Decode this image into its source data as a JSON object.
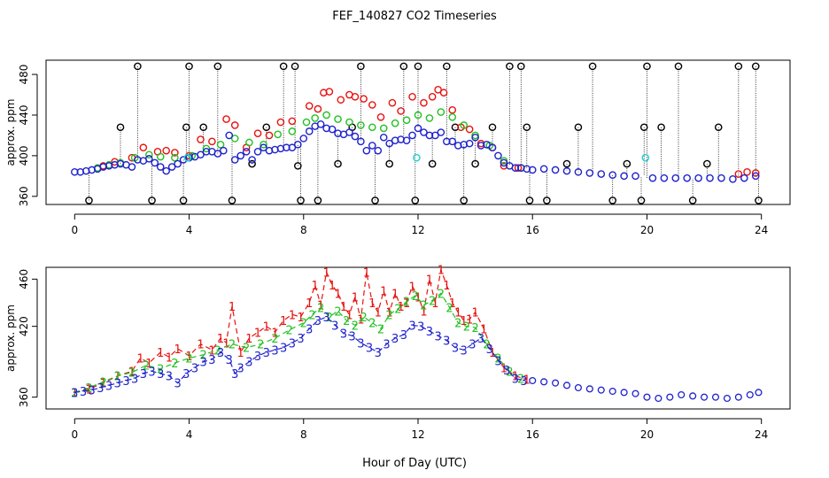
{
  "title": "FEF_140827  CO2 Timeseries",
  "xlabel": "Hour of Day (UTC)",
  "colors": {
    "black": "#000000",
    "red": "#e8120f",
    "green": "#21c121",
    "blue": "#1f22cc",
    "cyan": "#1fd0d0"
  },
  "chart_data": [
    {
      "type": "scatter",
      "panel": "top",
      "ylabel": "approx. ppm",
      "xlim": [
        -1,
        25
      ],
      "ylim": [
        352,
        494
      ],
      "xticks": [
        0,
        4,
        8,
        12,
        16,
        20,
        24
      ],
      "yticks": [
        360,
        400,
        440,
        480
      ],
      "series": [
        {
          "name": "black-reference",
          "marker": "circle",
          "color": "black",
          "x": [
            0.5,
            1.6,
            2.2,
            2.7,
            3.8,
            3.9,
            4.0,
            4.5,
            5.0,
            5.5,
            6.2,
            6.7,
            7.3,
            7.7,
            7.8,
            7.9,
            8.5,
            9.2,
            9.7,
            10.0,
            10.5,
            11.0,
            11.5,
            11.9,
            12.0,
            12.5,
            13.0,
            13.3,
            13.6,
            14.0,
            14.6,
            15.2,
            15.6,
            15.8,
            15.9,
            16.5,
            17.2,
            17.6,
            18.1,
            18.8,
            19.3,
            19.8,
            19.9,
            20.0,
            20.5,
            21.1,
            21.6,
            22.1,
            22.5,
            23.2,
            23.8,
            23.9
          ],
          "y": [
            356,
            428,
            488,
            356,
            356,
            428,
            488,
            428,
            488,
            356,
            392,
            428,
            488,
            488,
            390,
            356,
            356,
            392,
            428,
            488,
            356,
            392,
            488,
            356,
            488,
            392,
            488,
            428,
            356,
            392,
            428,
            488,
            488,
            428,
            356,
            356,
            392,
            428,
            488,
            356,
            392,
            356,
            428,
            488,
            428,
            488,
            356,
            392,
            428,
            488,
            488,
            356
          ]
        },
        {
          "name": "red",
          "marker": "circle",
          "color": "red",
          "x": [
            1.0,
            1.4,
            2.0,
            2.4,
            2.9,
            3.2,
            3.5,
            4.0,
            4.4,
            4.8,
            5.3,
            5.6,
            6.0,
            6.4,
            6.8,
            7.2,
            7.6,
            8.2,
            8.5,
            8.7,
            8.9,
            9.3,
            9.6,
            9.8,
            10.1,
            10.4,
            10.7,
            11.1,
            11.4,
            11.8,
            12.2,
            12.5,
            12.7,
            12.9,
            13.2,
            13.5,
            13.8,
            14.2,
            14.6,
            15.0,
            15.5,
            23.2,
            23.5,
            23.8
          ],
          "y": [
            390,
            394,
            398,
            408,
            404,
            405,
            403,
            400,
            416,
            414,
            436,
            430,
            408,
            422,
            420,
            433,
            434,
            449,
            446,
            462,
            463,
            455,
            460,
            458,
            456,
            450,
            438,
            452,
            444,
            458,
            452,
            458,
            465,
            462,
            445,
            428,
            426,
            412,
            408,
            390,
            388,
            382,
            384,
            383
          ]
        },
        {
          "name": "green",
          "marker": "circle",
          "color": "green",
          "x": [
            0.8,
            1.2,
            1.6,
            2.1,
            2.6,
            3.0,
            3.5,
            4.1,
            4.6,
            5.1,
            5.6,
            6.1,
            6.6,
            7.1,
            7.6,
            8.1,
            8.4,
            8.8,
            9.2,
            9.6,
            10.0,
            10.4,
            10.8,
            11.2,
            11.6,
            12.0,
            12.4,
            12.8,
            13.2,
            13.6,
            14.0,
            14.5,
            15.0,
            15.6
          ],
          "y": [
            388,
            391,
            393,
            398,
            401,
            399,
            398,
            400,
            407,
            411,
            417,
            413,
            411,
            421,
            424,
            433,
            437,
            440,
            436,
            433,
            430,
            428,
            427,
            432,
            435,
            440,
            437,
            443,
            438,
            430,
            420,
            410,
            395,
            388
          ]
        },
        {
          "name": "blue",
          "marker": "circle",
          "color": "blue",
          "x": [
            0.0,
            0.2,
            0.4,
            0.6,
            0.8,
            1.0,
            1.2,
            1.4,
            1.6,
            1.8,
            2.0,
            2.2,
            2.4,
            2.6,
            2.8,
            3.0,
            3.2,
            3.4,
            3.6,
            3.8,
            4.0,
            4.2,
            4.4,
            4.6,
            4.8,
            5.0,
            5.2,
            5.4,
            5.6,
            5.8,
            6.0,
            6.2,
            6.4,
            6.6,
            6.8,
            7.0,
            7.2,
            7.4,
            7.6,
            7.8,
            8.0,
            8.2,
            8.4,
            8.6,
            8.8,
            9.0,
            9.2,
            9.4,
            9.6,
            9.8,
            10.0,
            10.2,
            10.4,
            10.6,
            10.8,
            11.0,
            11.2,
            11.4,
            11.6,
            11.8,
            12.0,
            12.2,
            12.4,
            12.6,
            12.8,
            13.0,
            13.2,
            13.4,
            13.6,
            13.8,
            14.0,
            14.2,
            14.4,
            14.6,
            14.8,
            15.0,
            15.2,
            15.4,
            15.6,
            15.8,
            16.0,
            16.4,
            16.8,
            17.2,
            17.6,
            18.0,
            18.4,
            18.8,
            19.2,
            19.6,
            20.2,
            20.6,
            21.0,
            21.4,
            21.8,
            22.2,
            22.6,
            23.0,
            23.4,
            23.8
          ],
          "y": [
            384,
            384,
            385,
            386,
            387,
            389,
            390,
            391,
            392,
            391,
            389,
            396,
            395,
            397,
            393,
            389,
            385,
            389,
            392,
            396,
            398,
            399,
            401,
            404,
            404,
            402,
            405,
            420,
            396,
            400,
            404,
            396,
            404,
            408,
            405,
            406,
            407,
            408,
            408,
            411,
            417,
            424,
            429,
            431,
            427,
            426,
            422,
            421,
            423,
            419,
            414,
            405,
            410,
            405,
            418,
            412,
            415,
            416,
            415,
            420,
            427,
            423,
            420,
            420,
            423,
            414,
            414,
            410,
            411,
            412,
            418,
            410,
            411,
            408,
            400,
            393,
            390,
            388,
            388,
            387,
            386,
            387,
            386,
            385,
            384,
            383,
            382,
            381,
            380,
            380,
            378,
            378,
            378,
            378,
            378,
            378,
            378,
            377,
            378,
            380
          ]
        },
        {
          "name": "cyan",
          "marker": "circle",
          "color": "cyan",
          "x": [
            3.95,
            11.95,
            19.95
          ],
          "y": [
            398,
            398,
            398
          ]
        }
      ]
    },
    {
      "type": "line",
      "panel": "bottom",
      "ylabel": "approx. ppm",
      "xlim": [
        -1,
        25
      ],
      "ylim": [
        350,
        470
      ],
      "xticks": [
        0,
        4,
        8,
        12,
        16,
        20,
        24
      ],
      "yticks": [
        360,
        420,
        460
      ],
      "series": [
        {
          "name": "1",
          "marker_label": "1",
          "color": "red",
          "x": [
            0.0,
            0.5,
            1.0,
            1.5,
            2.0,
            2.3,
            2.6,
            3.0,
            3.3,
            3.6,
            4.0,
            4.4,
            4.8,
            5.1,
            5.3,
            5.5,
            5.8,
            6.1,
            6.4,
            6.7,
            7.0,
            7.3,
            7.6,
            7.9,
            8.2,
            8.4,
            8.6,
            8.8,
            9.0,
            9.2,
            9.4,
            9.6,
            9.8,
            10.0,
            10.2,
            10.4,
            10.6,
            10.8,
            11.0,
            11.2,
            11.4,
            11.6,
            11.8,
            12.0,
            12.2,
            12.4,
            12.6,
            12.8,
            13.0,
            13.2,
            13.4,
            13.6,
            13.8,
            14.0,
            14.3,
            14.6,
            15.0,
            15.4,
            15.8
          ],
          "y": [
            364,
            367,
            372,
            378,
            382,
            393,
            389,
            398,
            394,
            401,
            395,
            405,
            400,
            410,
            406,
            437,
            398,
            410,
            415,
            420,
            415,
            425,
            430,
            428,
            440,
            455,
            438,
            466,
            455,
            448,
            437,
            430,
            445,
            426,
            466,
            440,
            432,
            450,
            432,
            448,
            437,
            440,
            454,
            445,
            433,
            460,
            440,
            468,
            455,
            440,
            432,
            425,
            426,
            432,
            418,
            398,
            385,
            378,
            375
          ]
        },
        {
          "name": "2",
          "marker_label": "2",
          "color": "green",
          "x": [
            0.0,
            0.5,
            1.0,
            1.5,
            2.0,
            2.5,
            3.0,
            3.5,
            4.0,
            4.5,
            5.0,
            5.5,
            6.0,
            6.5,
            7.0,
            7.5,
            8.0,
            8.3,
            8.6,
            8.9,
            9.2,
            9.5,
            9.8,
            10.1,
            10.4,
            10.7,
            11.0,
            11.3,
            11.6,
            11.9,
            12.2,
            12.5,
            12.8,
            13.1,
            13.4,
            13.7,
            14.0,
            14.4,
            14.8,
            15.2,
            15.6
          ],
          "y": [
            364,
            368,
            373,
            378,
            381,
            387,
            384,
            389,
            393,
            396,
            400,
            405,
            402,
            405,
            410,
            417,
            423,
            430,
            436,
            428,
            433,
            425,
            421,
            428,
            423,
            418,
            430,
            435,
            441,
            446,
            438,
            442,
            448,
            436,
            423,
            420,
            419,
            405,
            393,
            382,
            376
          ]
        },
        {
          "name": "3",
          "marker_label": "3",
          "color": "blue",
          "x": [
            0.0,
            0.3,
            0.6,
            0.9,
            1.2,
            1.5,
            1.8,
            2.1,
            2.4,
            2.7,
            3.0,
            3.3,
            3.6,
            3.9,
            4.2,
            4.5,
            4.8,
            5.1,
            5.4,
            5.6,
            5.8,
            6.1,
            6.4,
            6.7,
            7.0,
            7.3,
            7.6,
            7.9,
            8.2,
            8.5,
            8.8,
            9.1,
            9.4,
            9.7,
            10.0,
            10.3,
            10.6,
            10.9,
            11.2,
            11.5,
            11.8,
            12.1,
            12.4,
            12.7,
            13.0,
            13.3,
            13.6,
            13.9,
            14.2,
            14.5,
            14.8,
            15.1,
            15.4,
            15.7
          ],
          "y": [
            364,
            365,
            366,
            368,
            370,
            372,
            374,
            376,
            380,
            382,
            380,
            378,
            372,
            380,
            385,
            390,
            392,
            398,
            392,
            380,
            385,
            390,
            395,
            398,
            400,
            402,
            406,
            410,
            418,
            425,
            428,
            421,
            414,
            412,
            406,
            402,
            398,
            405,
            410,
            413,
            421,
            420,
            416,
            412,
            408,
            402,
            400,
            405,
            410,
            401,
            391,
            383,
            376,
            374
          ]
        },
        {
          "name": "4",
          "marker": "circle",
          "color": "blue",
          "x": [
            16.0,
            16.4,
            16.8,
            17.2,
            17.6,
            18.0,
            18.4,
            18.8,
            19.2,
            19.6,
            20.0,
            20.4,
            20.8,
            21.2,
            21.6,
            22.0,
            22.4,
            22.8,
            23.2,
            23.6,
            23.9
          ],
          "y": [
            374,
            373,
            372,
            370,
            368,
            367,
            366,
            365,
            364,
            363,
            360,
            359,
            360,
            362,
            361,
            360,
            360,
            359,
            360,
            362,
            364
          ]
        }
      ]
    }
  ]
}
